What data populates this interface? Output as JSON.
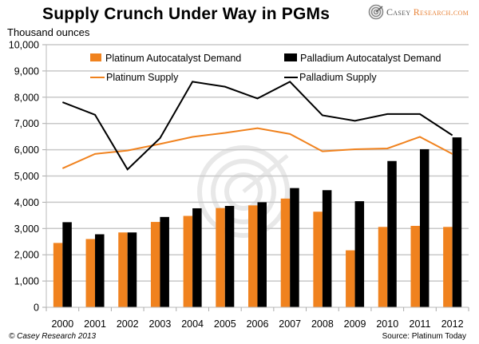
{
  "header": {
    "title": "Supply Crunch Under Way in PGMs",
    "logo_part1": "Casey",
    "logo_part2": "Research.com"
  },
  "footer": {
    "copyright": "© Casey Research 2013",
    "source": "Source: Platinum Today"
  },
  "colors": {
    "platinum": "#f0821e",
    "palladium": "#000000",
    "grid": "#c8c8c8"
  },
  "chart_data": {
    "type": "bar",
    "title": "Supply Crunch Under Way in PGMs",
    "xlabel": "",
    "ylabel": "Thousand ounces",
    "ylim": [
      0,
      10000
    ],
    "yticks": [
      0,
      1000,
      2000,
      3000,
      4000,
      5000,
      6000,
      7000,
      8000,
      9000,
      10000
    ],
    "ytick_labels": [
      "0",
      "1,000",
      "2,000",
      "3,000",
      "4,000",
      "5,000",
      "6,000",
      "7,000",
      "8,000",
      "9,000",
      "10,000"
    ],
    "grid": true,
    "legend_position": "top",
    "categories": [
      "2000",
      "2001",
      "2002",
      "2003",
      "2004",
      "2005",
      "2006",
      "2007",
      "2008",
      "2009",
      "2010",
      "2011",
      "2012"
    ],
    "series": [
      {
        "name": "Platinum Autocatalyst Demand",
        "kind": "bar",
        "color": "#f0821e",
        "values": [
          2450,
          2600,
          2850,
          3250,
          3480,
          3780,
          3880,
          4140,
          3640,
          2170,
          3060,
          3100,
          3060
        ]
      },
      {
        "name": "Palladium Autocatalyst Demand",
        "kind": "bar",
        "color": "#000000",
        "values": [
          3240,
          2780,
          2850,
          3440,
          3770,
          3860,
          4000,
          4540,
          4460,
          4040,
          5570,
          6020,
          6470
        ]
      },
      {
        "name": "Platinum Supply",
        "kind": "line",
        "color": "#f0821e",
        "values": [
          5290,
          5840,
          5970,
          6220,
          6490,
          6640,
          6820,
          6600,
          5940,
          6020,
          6050,
          6490,
          5840
        ]
      },
      {
        "name": "Palladium Supply",
        "kind": "line",
        "color": "#000000",
        "values": [
          7810,
          7330,
          5250,
          6440,
          8590,
          8400,
          7950,
          8590,
          7310,
          7100,
          7360,
          7360,
          6550
        ]
      }
    ]
  }
}
